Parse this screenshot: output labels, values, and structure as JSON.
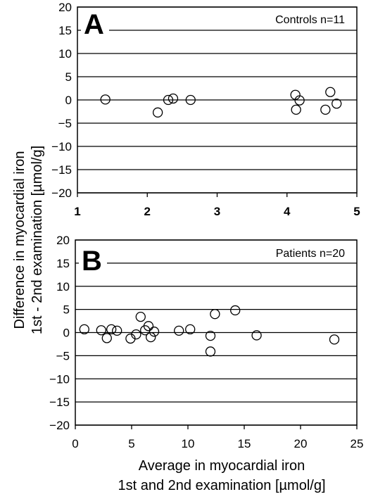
{
  "chart_data": [
    {
      "type": "scatter",
      "panel_label": "A",
      "annotation": "Controls n=11",
      "xlim": [
        1,
        5
      ],
      "ylim": [
        -20,
        20
      ],
      "x_ticks": [
        "1",
        "2",
        "3",
        "4",
        "5"
      ],
      "y_ticks": [
        "20",
        "15",
        "10",
        "5",
        "0",
        "-5",
        "-10",
        "-15",
        "-20"
      ],
      "x_tick_style": "bold",
      "grid": "horizontal",
      "points": [
        {
          "x": 1.4,
          "y": 0.1
        },
        {
          "x": 2.15,
          "y": -2.7
        },
        {
          "x": 2.3,
          "y": 0.0
        },
        {
          "x": 2.37,
          "y": 0.3
        },
        {
          "x": 2.62,
          "y": 0.0
        },
        {
          "x": 4.12,
          "y": 1.1
        },
        {
          "x": 4.13,
          "y": -2.1
        },
        {
          "x": 4.18,
          "y": -0.1
        },
        {
          "x": 4.55,
          "y": -2.1
        },
        {
          "x": 4.62,
          "y": 1.7
        },
        {
          "x": 4.71,
          "y": -0.8
        }
      ]
    },
    {
      "type": "scatter",
      "panel_label": "B",
      "annotation": "Patients n=20",
      "xlim": [
        0,
        25
      ],
      "ylim": [
        -20,
        20
      ],
      "x_ticks": [
        "0",
        "5",
        "10",
        "15",
        "20",
        "25"
      ],
      "y_ticks": [
        "20",
        "15",
        "10",
        "5",
        "0",
        "-5",
        "-10",
        "-15",
        "-20"
      ],
      "x_tick_style": "normal",
      "grid": "horizontal",
      "points": [
        {
          "x": 0.8,
          "y": 0.7
        },
        {
          "x": 2.3,
          "y": 0.5
        },
        {
          "x": 2.8,
          "y": -1.2
        },
        {
          "x": 3.2,
          "y": 0.7
        },
        {
          "x": 3.7,
          "y": 0.4
        },
        {
          "x": 4.9,
          "y": -1.3
        },
        {
          "x": 5.4,
          "y": -0.4
        },
        {
          "x": 5.8,
          "y": 3.4
        },
        {
          "x": 6.2,
          "y": 0.5
        },
        {
          "x": 6.5,
          "y": 1.4
        },
        {
          "x": 6.7,
          "y": -1.0
        },
        {
          "x": 7.0,
          "y": 0.2
        },
        {
          "x": 9.2,
          "y": 0.4
        },
        {
          "x": 10.2,
          "y": 0.7
        },
        {
          "x": 12.0,
          "y": -0.7
        },
        {
          "x": 12.0,
          "y": -4.1
        },
        {
          "x": 12.4,
          "y": 4.0
        },
        {
          "x": 14.2,
          "y": 4.8
        },
        {
          "x": 16.1,
          "y": -0.6
        },
        {
          "x": 23.0,
          "y": -1.5
        }
      ]
    }
  ],
  "y_axis_title": {
    "line1": "Difference in myocardial iron",
    "line2": "1st - 2nd examination  [µmol/g]"
  },
  "x_axis_title": {
    "line1": "Average in myocardial iron",
    "line2": "1st  and  2nd examination  [µmol/g]"
  }
}
